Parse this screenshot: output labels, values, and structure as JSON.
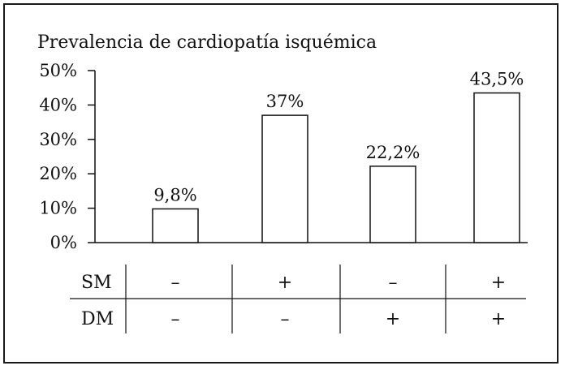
{
  "chart_data": {
    "type": "bar",
    "title": "Prevalencia de cardiopatía isquémica",
    "xlabel": "",
    "ylabel": "",
    "ylim": [
      0,
      50
    ],
    "yticks": [
      "0%",
      "10%",
      "20%",
      "30%",
      "40%",
      "50%"
    ],
    "grid": false,
    "colors": {
      "bar_fill": "#ffffff",
      "bar_stroke": "#111111"
    },
    "categories": [
      "SM − / DM −",
      "SM + / DM −",
      "SM − / DM +",
      "SM + / DM +"
    ],
    "values": [
      9.8,
      37,
      22.2,
      43.5
    ],
    "data_labels": [
      "9,8%",
      "37%",
      "22,2%",
      "43,5%"
    ]
  },
  "table": {
    "rows": [
      {
        "label": "SM",
        "signs": [
          "–",
          "+",
          "–",
          "+"
        ]
      },
      {
        "label": "DM",
        "signs": [
          "–",
          "–",
          "+",
          "+"
        ]
      }
    ]
  }
}
